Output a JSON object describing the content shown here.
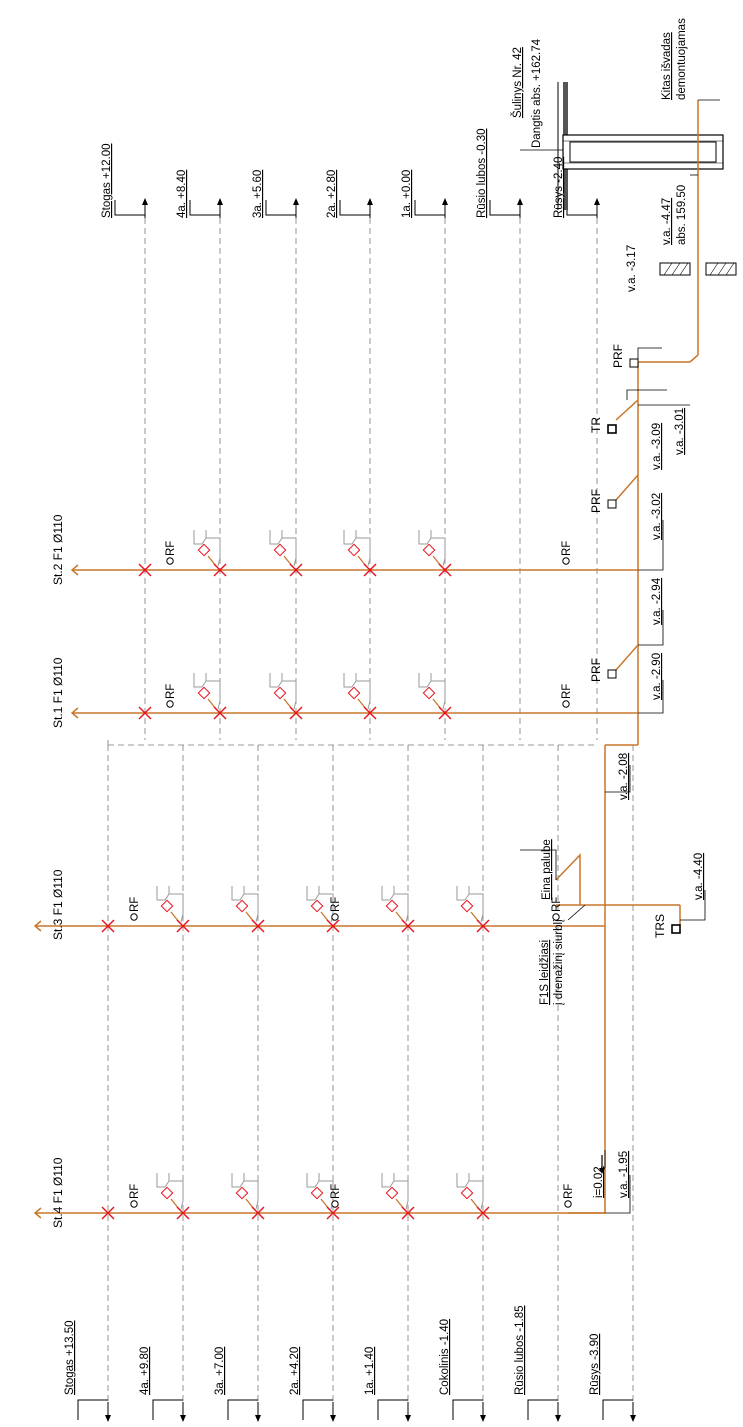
{
  "colors": {
    "pipe": "#c8772a",
    "cross": "#e8121b",
    "dashed": "#7a7a7a",
    "fixture": "#9a9a9a"
  },
  "top_levels": [
    {
      "label": "Stogas +12.00"
    },
    {
      "label": "4a. +8.40"
    },
    {
      "label": "3a. +5.60"
    },
    {
      "label": "2a. +2.80"
    },
    {
      "label": "1a. +0.00"
    },
    {
      "label": "Rūsio lubos -0.30"
    },
    {
      "label": "Rūsys -2.40"
    }
  ],
  "bottom_levels": [
    {
      "label": "Stogas +13.50"
    },
    {
      "label": "4a. +9.80"
    },
    {
      "label": "3a. +7.00"
    },
    {
      "label": "2a. +4.20"
    },
    {
      "label": "1a. +1.40"
    },
    {
      "label": "Cokolinis -1.40"
    },
    {
      "label": "Rūsio lubos -1.85"
    },
    {
      "label": "Rūsys -3.90"
    }
  ],
  "stacks": [
    {
      "label": "St.2 F1 Ø110"
    },
    {
      "label": "St.1 F1 Ø110"
    },
    {
      "label": "St.3 F1 Ø110"
    },
    {
      "label": "St.4 F1 Ø110"
    }
  ],
  "rf_label": "RF",
  "fixture_labels": {
    "prf": "PRF",
    "tr": "TR",
    "trs": "TRS"
  },
  "well": {
    "name": "Šulinys Nr. 42",
    "lid": "Dangtis abs. +162.74",
    "outlet_1": "Kitas išvadas",
    "outlet_2": "demontuojamas",
    "va": "v.a. -4.47",
    "abs": "abs. 159.50"
  },
  "inverts": {
    "main": "v.a. -3.17",
    "tr_1": "v.a. -3.09",
    "tr_2": "v.a. -3.01",
    "st2": "v.a. -3.02",
    "prf2": "v.a. -2.94",
    "st1": "v.a. -2.90",
    "st3": "v.a. -2.08",
    "trs": "v.a. -4.40",
    "st4": "v.a. -1.95"
  },
  "slope": "i=0.02",
  "notes": {
    "eina_palube": "Eina palube",
    "f1s_line1": "F1S leidžiasi",
    "f1s_line2": "į drenažinį siurblį"
  }
}
